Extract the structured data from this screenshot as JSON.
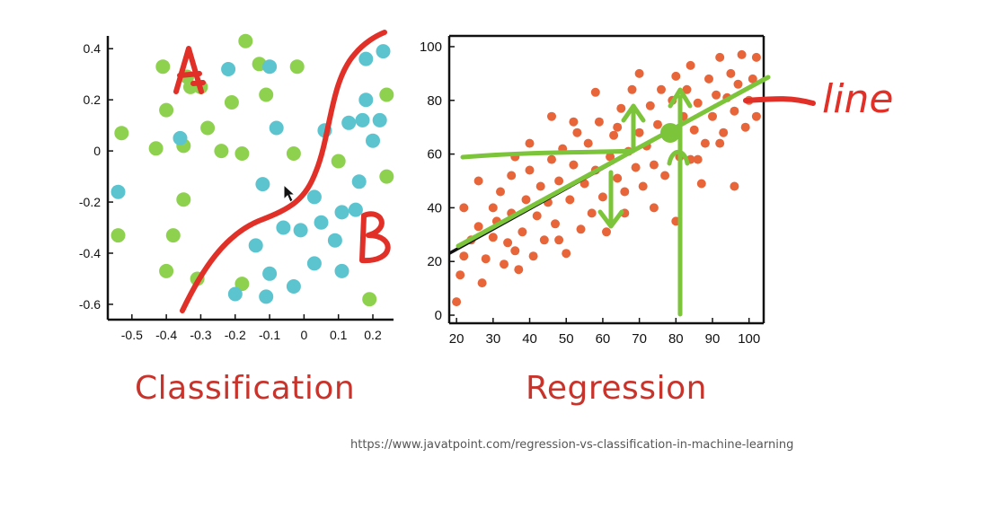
{
  "colors": {
    "blue_points": "#5bc4cf",
    "green_points": "#8ed14f",
    "orange_points": "#e8653a",
    "title_red": "#c8342c",
    "ink_red": "#e03027",
    "ink_green": "#7cc43a",
    "axis": "#111111"
  },
  "captions": {
    "classification": "Classification",
    "regression": "Regression"
  },
  "source_url": "https://www.javatpoint.com/regression-vs-classification-in-machine-learning",
  "annotations": {
    "class_a": "A",
    "class_b": "B",
    "line_label": "line"
  },
  "cursor_icon": "mouse-pointer-icon",
  "chart_data": [
    {
      "type": "scatter",
      "title": "Classification",
      "xlim": [
        -0.57,
        0.26
      ],
      "ylim": [
        -0.66,
        0.45
      ],
      "xticks": [
        -0.5,
        -0.4,
        -0.3,
        -0.2,
        -0.1,
        0,
        0.1,
        0.2
      ],
      "xtick_labels": [
        "-0.5",
        "-0.4",
        "-0.3",
        "-0.2",
        "-0.1",
        "0",
        "0.1",
        "0.2"
      ],
      "yticks": [
        0.4,
        0.2,
        0,
        -0.2,
        -0.4,
        -0.6
      ],
      "ytick_labels": [
        "0.4",
        "0.2",
        "0",
        "-0.2",
        "-0.4",
        "-0.6"
      ],
      "series": [
        {
          "color": "green",
          "points": [
            [
              -0.41,
              0.33
            ],
            [
              -0.34,
              0.29
            ],
            [
              -0.33,
              0.25
            ],
            [
              -0.17,
              0.43
            ],
            [
              -0.13,
              0.34
            ],
            [
              -0.02,
              0.33
            ],
            [
              -0.4,
              0.16
            ],
            [
              -0.3,
              0.25
            ],
            [
              -0.21,
              0.19
            ],
            [
              -0.11,
              0.22
            ],
            [
              -0.53,
              0.07
            ],
            [
              -0.43,
              0.01
            ],
            [
              -0.35,
              0.02
            ],
            [
              -0.28,
              0.09
            ],
            [
              -0.24,
              0.0
            ],
            [
              -0.18,
              -0.01
            ],
            [
              -0.03,
              -0.01
            ],
            [
              -0.35,
              -0.19
            ],
            [
              -0.54,
              -0.33
            ],
            [
              -0.38,
              -0.33
            ],
            [
              -0.4,
              -0.47
            ],
            [
              0.1,
              -0.04
            ],
            [
              0.24,
              0.22
            ],
            [
              0.24,
              -0.1
            ],
            [
              0.19,
              -0.58
            ],
            [
              -0.18,
              -0.52
            ],
            [
              -0.31,
              -0.5
            ]
          ]
        },
        {
          "color": "blue",
          "points": [
            [
              -0.22,
              0.32
            ],
            [
              -0.1,
              0.33
            ],
            [
              0.18,
              0.36
            ],
            [
              0.23,
              0.39
            ],
            [
              0.18,
              0.2
            ],
            [
              0.17,
              0.12
            ],
            [
              0.22,
              0.12
            ],
            [
              0.13,
              0.11
            ],
            [
              0.06,
              0.08
            ],
            [
              0.2,
              0.04
            ],
            [
              -0.36,
              0.05
            ],
            [
              -0.08,
              0.09
            ],
            [
              0.16,
              -0.12
            ],
            [
              -0.54,
              -0.16
            ],
            [
              -0.12,
              -0.13
            ],
            [
              0.03,
              -0.18
            ],
            [
              0.11,
              -0.24
            ],
            [
              0.15,
              -0.23
            ],
            [
              -0.01,
              -0.31
            ],
            [
              -0.14,
              -0.37
            ],
            [
              0.09,
              -0.35
            ],
            [
              0.03,
              -0.44
            ],
            [
              -0.1,
              -0.48
            ],
            [
              -0.03,
              -0.53
            ],
            [
              -0.11,
              -0.57
            ],
            [
              -0.2,
              -0.56
            ],
            [
              0.11,
              -0.47
            ],
            [
              0.05,
              -0.28
            ],
            [
              -0.06,
              -0.3
            ]
          ]
        }
      ]
    },
    {
      "type": "scatter",
      "title": "Regression",
      "xlim": [
        18,
        104
      ],
      "ylim": [
        -3,
        104
      ],
      "xticks": [
        20,
        30,
        40,
        50,
        60,
        70,
        80,
        90,
        100
      ],
      "xtick_labels": [
        "20",
        "30",
        "40",
        "50",
        "60",
        "70",
        "80",
        "90",
        "100"
      ],
      "yticks": [
        0,
        20,
        40,
        60,
        80,
        100
      ],
      "ytick_labels": [
        "0",
        "20",
        "40",
        "60",
        "80",
        "100"
      ],
      "fit_line": [
        [
          18,
          23
        ],
        [
          104,
          88
        ]
      ],
      "series": [
        {
          "color": "orange",
          "points": [
            [
              20,
              5
            ],
            [
              21,
              15
            ],
            [
              22,
              22
            ],
            [
              24,
              28
            ],
            [
              26,
              33
            ],
            [
              27,
              12
            ],
            [
              28,
              21
            ],
            [
              30,
              29
            ],
            [
              30,
              40
            ],
            [
              31,
              35
            ],
            [
              32,
              46
            ],
            [
              33,
              19
            ],
            [
              34,
              27
            ],
            [
              35,
              38
            ],
            [
              35,
              52
            ],
            [
              36,
              59
            ],
            [
              37,
              17
            ],
            [
              38,
              31
            ],
            [
              39,
              43
            ],
            [
              40,
              54
            ],
            [
              41,
              22
            ],
            [
              42,
              37
            ],
            [
              43,
              48
            ],
            [
              44,
              28
            ],
            [
              45,
              42
            ],
            [
              46,
              58
            ],
            [
              46,
              74
            ],
            [
              47,
              34
            ],
            [
              48,
              50
            ],
            [
              49,
              62
            ],
            [
              50,
              23
            ],
            [
              51,
              43
            ],
            [
              52,
              56
            ],
            [
              53,
              68
            ],
            [
              54,
              32
            ],
            [
              55,
              49
            ],
            [
              56,
              64
            ],
            [
              57,
              38
            ],
            [
              58,
              54
            ],
            [
              59,
              72
            ],
            [
              60,
              44
            ],
            [
              61,
              31
            ],
            [
              62,
              59
            ],
            [
              63,
              67
            ],
            [
              64,
              51
            ],
            [
              65,
              77
            ],
            [
              66,
              46
            ],
            [
              67,
              61
            ],
            [
              68,
              84
            ],
            [
              69,
              55
            ],
            [
              70,
              68
            ],
            [
              71,
              48
            ],
            [
              72,
              63
            ],
            [
              73,
              78
            ],
            [
              74,
              56
            ],
            [
              75,
              71
            ],
            [
              76,
              84
            ],
            [
              77,
              52
            ],
            [
              78,
              66
            ],
            [
              79,
              80
            ],
            [
              80,
              35
            ],
            [
              80,
              89
            ],
            [
              81,
              59
            ],
            [
              82,
              74
            ],
            [
              83,
              84
            ],
            [
              84,
              93
            ],
            [
              85,
              69
            ],
            [
              86,
              79
            ],
            [
              87,
              49
            ],
            [
              88,
              64
            ],
            [
              89,
              88
            ],
            [
              90,
              74
            ],
            [
              91,
              82
            ],
            [
              92,
              96
            ],
            [
              93,
              68
            ],
            [
              94,
              81
            ],
            [
              95,
              90
            ],
            [
              96,
              76
            ],
            [
              97,
              86
            ],
            [
              98,
              97
            ],
            [
              99,
              70
            ],
            [
              100,
              80
            ],
            [
              101,
              88
            ],
            [
              102,
              74
            ],
            [
              58,
              83
            ],
            [
              64,
              70
            ],
            [
              70,
              90
            ],
            [
              86,
              58
            ],
            [
              36,
              24
            ],
            [
              48,
              28
            ],
            [
              26,
              50
            ],
            [
              22,
              40
            ],
            [
              40,
              64
            ],
            [
              52,
              72
            ],
            [
              92,
              64
            ],
            [
              102,
              96
            ],
            [
              96,
              48
            ],
            [
              74,
              40
            ],
            [
              84,
              58
            ],
            [
              66,
              38
            ]
          ]
        }
      ]
    }
  ]
}
